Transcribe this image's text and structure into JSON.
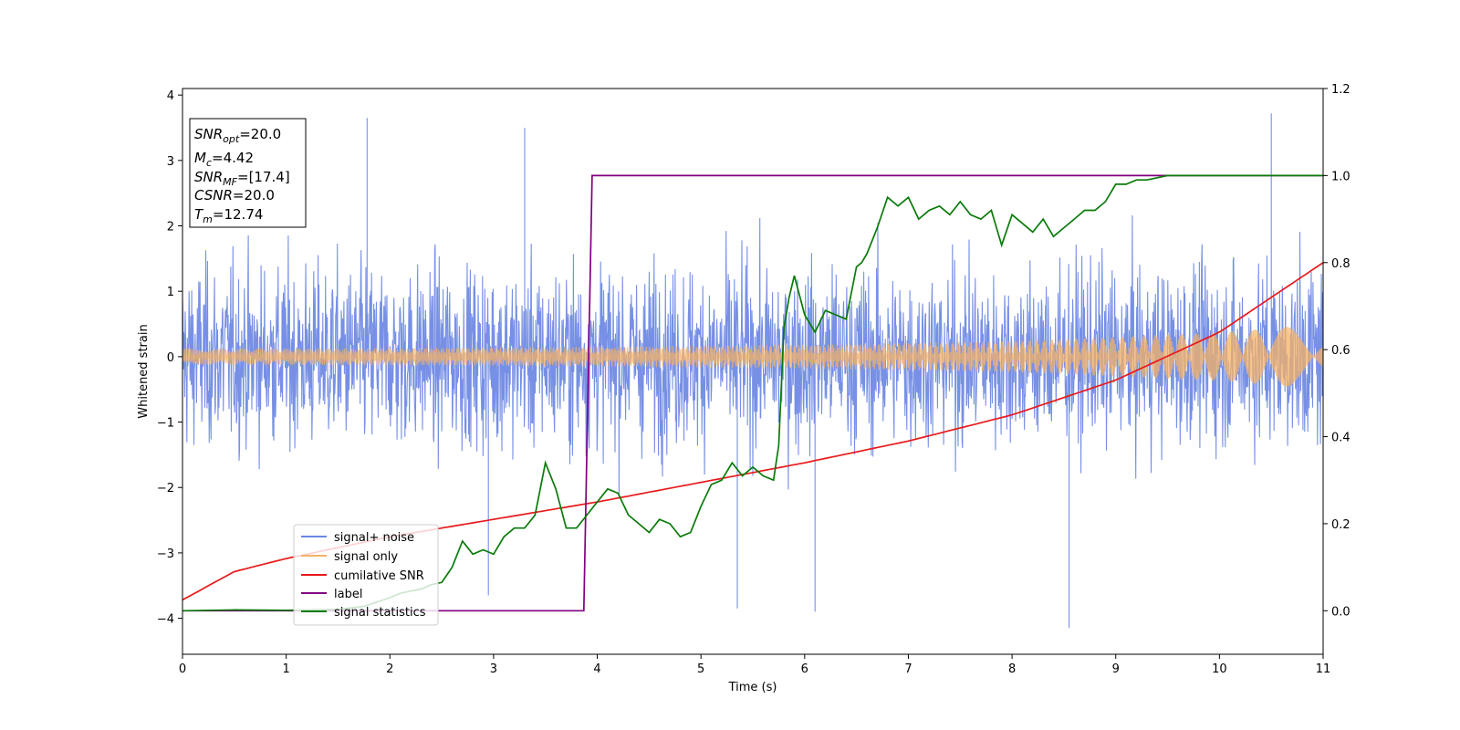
{
  "chart_data": {
    "type": "line",
    "title": "",
    "xlabel": "Time (s)",
    "ylabel": "Whitened strain",
    "y2label": "",
    "xlim": [
      0,
      11
    ],
    "ylim": [
      -4.55,
      4.1
    ],
    "y2lim": [
      -0.1,
      1.2
    ],
    "x_ticks": [
      0,
      1,
      2,
      3,
      4,
      5,
      6,
      7,
      8,
      9,
      10,
      11
    ],
    "y_ticks": [
      -4,
      -3,
      -2,
      -1,
      0,
      1,
      2,
      3,
      4
    ],
    "y2_ticks": [
      0.0,
      0.2,
      0.4,
      0.6,
      0.8,
      1.0,
      1.2
    ],
    "x_tick_labels": [
      "0",
      "1",
      "2",
      "3",
      "4",
      "5",
      "6",
      "7",
      "8",
      "9",
      "10",
      "11"
    ],
    "y_tick_labels": [
      "−4",
      "−3",
      "−2",
      "−1",
      "0",
      "1",
      "2",
      "3",
      "4"
    ],
    "y2_tick_labels": [
      "0.0",
      "0.2",
      "0.4",
      "0.6",
      "0.8",
      "1.0",
      "1.2"
    ],
    "grid": false,
    "legend_position": "lower-left",
    "series": [
      {
        "name": "signal+ noise",
        "color": "#6b87e3",
        "axis": "left",
        "kind": "noise-band",
        "envelope_x": [
          0,
          2,
          4,
          6,
          8,
          10,
          11
        ],
        "envelope_low": [
          -2.3,
          -2.3,
          -2.3,
          -2.3,
          -2.3,
          -2.3,
          -2.3
        ],
        "envelope_high": [
          2.3,
          2.3,
          2.3,
          2.3,
          2.3,
          2.3,
          2.3
        ],
        "spike_extremes": [
          [
            1.78,
            3.65
          ],
          [
            2.95,
            -3.65
          ],
          [
            5.35,
            -3.85
          ],
          [
            8.55,
            -4.15
          ],
          [
            10.5,
            3.72
          ],
          [
            3.3,
            3.5
          ],
          [
            6.1,
            -3.9
          ]
        ]
      },
      {
        "name": "signal only",
        "color": "#f5b266",
        "axis": "left",
        "kind": "chirp-envelope",
        "x": [
          0,
          2,
          4,
          6,
          8,
          10,
          11
        ],
        "amplitude": [
          0.12,
          0.13,
          0.15,
          0.18,
          0.24,
          0.37,
          0.5
        ]
      },
      {
        "name": "cumilative SNR",
        "color": "#e8191b",
        "axis": "right",
        "x": [
          0,
          0.5,
          1,
          2,
          3,
          4,
          5,
          6,
          7,
          8,
          9,
          10,
          11
        ],
        "values": [
          0.025,
          0.09,
          0.12,
          0.17,
          0.21,
          0.25,
          0.295,
          0.34,
          0.39,
          0.45,
          0.53,
          0.64,
          0.8
        ]
      },
      {
        "name": "label",
        "color": "#800080",
        "axis": "right",
        "x": [
          0,
          3.87,
          3.95,
          11
        ],
        "values": [
          0.0,
          0.0,
          1.0,
          1.0
        ]
      },
      {
        "name": "signal statistics",
        "color": "#0a7a0a",
        "axis": "right",
        "x": [
          0,
          0.5,
          1.0,
          1.5,
          1.75,
          2.0,
          2.1,
          2.2,
          2.3,
          2.4,
          2.5,
          2.6,
          2.7,
          2.8,
          2.9,
          3.0,
          3.1,
          3.2,
          3.3,
          3.4,
          3.5,
          3.6,
          3.7,
          3.8,
          3.9,
          4.0,
          4.1,
          4.2,
          4.3,
          4.4,
          4.5,
          4.6,
          4.7,
          4.8,
          4.9,
          5.0,
          5.1,
          5.2,
          5.3,
          5.4,
          5.5,
          5.6,
          5.7,
          5.75,
          5.8,
          5.85,
          5.9,
          6.0,
          6.1,
          6.2,
          6.3,
          6.4,
          6.5,
          6.55,
          6.6,
          6.7,
          6.8,
          6.9,
          7.0,
          7.1,
          7.2,
          7.3,
          7.4,
          7.5,
          7.6,
          7.7,
          7.8,
          7.9,
          8.0,
          8.1,
          8.2,
          8.3,
          8.4,
          8.5,
          8.6,
          8.7,
          8.8,
          8.9,
          9.0,
          9.1,
          9.2,
          9.3,
          9.5,
          10.0,
          10.5,
          11.0
        ],
        "values": [
          0.0,
          0.002,
          0.001,
          0.003,
          0.01,
          0.03,
          0.04,
          0.045,
          0.05,
          0.06,
          0.065,
          0.1,
          0.16,
          0.13,
          0.14,
          0.13,
          0.17,
          0.19,
          0.19,
          0.22,
          0.34,
          0.28,
          0.19,
          0.19,
          0.22,
          0.25,
          0.28,
          0.27,
          0.22,
          0.2,
          0.18,
          0.21,
          0.2,
          0.17,
          0.18,
          0.24,
          0.29,
          0.3,
          0.34,
          0.31,
          0.33,
          0.31,
          0.3,
          0.38,
          0.65,
          0.72,
          0.77,
          0.68,
          0.64,
          0.69,
          0.68,
          0.67,
          0.79,
          0.8,
          0.82,
          0.88,
          0.95,
          0.93,
          0.95,
          0.9,
          0.92,
          0.93,
          0.91,
          0.94,
          0.91,
          0.9,
          0.92,
          0.84,
          0.91,
          0.89,
          0.87,
          0.9,
          0.86,
          0.88,
          0.9,
          0.92,
          0.92,
          0.94,
          0.98,
          0.98,
          0.99,
          0.99,
          1.0,
          1.0,
          1.0,
          1.0
        ]
      }
    ]
  },
  "info_box": {
    "lines": [
      {
        "sym": "SNR",
        "sub": "opt",
        "val": "=20.0"
      },
      {
        "sym": "M",
        "sub": "c",
        "val": "=4.42"
      },
      {
        "sym": "SNR",
        "sub": "MF",
        "val": "=[17.4]"
      },
      {
        "sym": "CSNR",
        "sub": "",
        "val": "=20.0"
      },
      {
        "sym": "T",
        "sub": "m",
        "val": "=12.74"
      }
    ]
  }
}
